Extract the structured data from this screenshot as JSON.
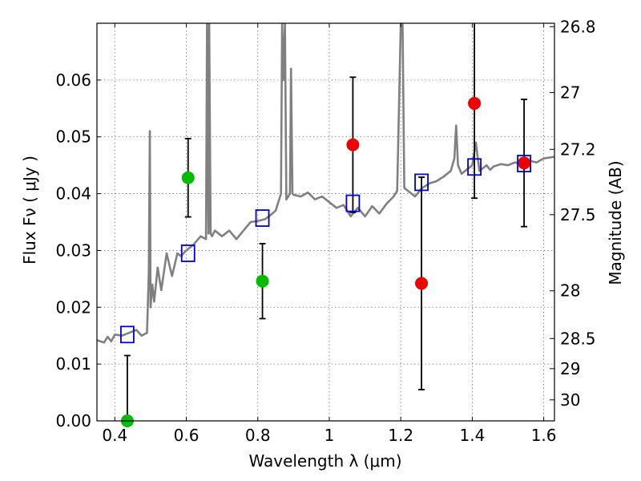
{
  "chart_data": {
    "type": "scatter",
    "xlabel": "Wavelength  λ (μm)",
    "ylabel": "Flux  Fν  ( μJy )",
    "ylabel_right": "Magnitude (AB)",
    "xlim": [
      0.35,
      1.63
    ],
    "ylim": [
      0.0,
      0.07
    ],
    "grid": true,
    "colors": {
      "spectrum": "#808080",
      "green": "#00bb00",
      "red": "#ee0000",
      "model": "#0000cc",
      "errorbar": "#000000"
    },
    "x_ticks": [
      {
        "value": 0.4,
        "label": "0.4"
      },
      {
        "value": 0.6,
        "label": "0.6"
      },
      {
        "value": 0.8,
        "label": "0.8"
      },
      {
        "value": 1.0,
        "label": "1"
      },
      {
        "value": 1.2,
        "label": "1.2"
      },
      {
        "value": 1.4,
        "label": "1.4"
      },
      {
        "value": 1.6,
        "label": "1.6"
      }
    ],
    "y_ticks": [
      {
        "value": 0.0,
        "label": "0.00"
      },
      {
        "value": 0.01,
        "label": "0.01"
      },
      {
        "value": 0.02,
        "label": "0.02"
      },
      {
        "value": 0.03,
        "label": "0.03"
      },
      {
        "value": 0.04,
        "label": "0.04"
      },
      {
        "value": 0.05,
        "label": "0.05"
      },
      {
        "value": 0.06,
        "label": "0.06"
      }
    ],
    "right_ticks": [
      {
        "flux": 0.0694,
        "label": "26.8"
      },
      {
        "flux": 0.0578,
        "label": "27"
      },
      {
        "flux": 0.0478,
        "label": "27.2"
      },
      {
        "flux": 0.0363,
        "label": "27.5"
      },
      {
        "flux": 0.0229,
        "label": "28"
      },
      {
        "flux": 0.0145,
        "label": "28.5"
      },
      {
        "flux": 0.0092,
        "label": "29"
      },
      {
        "flux": 0.0037,
        "label": "30"
      }
    ],
    "series": [
      {
        "name": "model spectrum",
        "kind": "line",
        "x": [
          0.35,
          0.37,
          0.38,
          0.39,
          0.4,
          0.42,
          0.44,
          0.46,
          0.475,
          0.49,
          0.495,
          0.498,
          0.5,
          0.505,
          0.51,
          0.52,
          0.53,
          0.545,
          0.56,
          0.575,
          0.585,
          0.6,
          0.62,
          0.64,
          0.655,
          0.658,
          0.662,
          0.664,
          0.668,
          0.672,
          0.68,
          0.7,
          0.72,
          0.74,
          0.76,
          0.78,
          0.8,
          0.82,
          0.835,
          0.85,
          0.865,
          0.868,
          0.872,
          0.876,
          0.88,
          0.89,
          0.893,
          0.897,
          0.9,
          0.92,
          0.94,
          0.96,
          0.98,
          1.0,
          1.02,
          1.04,
          1.06,
          1.08,
          1.1,
          1.12,
          1.14,
          1.16,
          1.18,
          1.19,
          1.2,
          1.205,
          1.21,
          1.22,
          1.24,
          1.26,
          1.28,
          1.3,
          1.32,
          1.34,
          1.35,
          1.355,
          1.36,
          1.37,
          1.38,
          1.4,
          1.41,
          1.42,
          1.43,
          1.44,
          1.45,
          1.46,
          1.48,
          1.5,
          1.52,
          1.54,
          1.56,
          1.58,
          1.6,
          1.63
        ],
        "values": [
          0.0142,
          0.0138,
          0.0148,
          0.014,
          0.0152,
          0.015,
          0.0155,
          0.016,
          0.015,
          0.0155,
          0.026,
          0.051,
          0.02,
          0.024,
          0.021,
          0.027,
          0.023,
          0.0295,
          0.0255,
          0.0295,
          0.029,
          0.03,
          0.031,
          0.0325,
          0.032,
          0.07,
          0.033,
          0.07,
          0.033,
          0.0325,
          0.0335,
          0.0325,
          0.0335,
          0.032,
          0.0335,
          0.035,
          0.0352,
          0.0355,
          0.0362,
          0.037,
          0.04,
          0.07,
          0.06,
          0.07,
          0.039,
          0.04,
          0.062,
          0.04,
          0.0398,
          0.0395,
          0.0402,
          0.039,
          0.0395,
          0.0385,
          0.0375,
          0.038,
          0.036,
          0.0375,
          0.036,
          0.0378,
          0.0365,
          0.0382,
          0.0395,
          0.0405,
          0.07,
          0.07,
          0.041,
          0.0405,
          0.0395,
          0.041,
          0.0418,
          0.0422,
          0.043,
          0.044,
          0.0462,
          0.052,
          0.045,
          0.0435,
          0.044,
          0.045,
          0.049,
          0.044,
          0.0445,
          0.045,
          0.0442,
          0.0448,
          0.0452,
          0.045,
          0.0455,
          0.045,
          0.0458,
          0.0455,
          0.0462,
          0.0465
        ]
      },
      {
        "name": "green photometry",
        "kind": "points",
        "marker": "circle",
        "x": [
          0.435,
          0.605,
          0.813
        ],
        "values": [
          0.0,
          0.0428,
          0.0246
        ],
        "err_low": [
          0.0,
          0.0069,
          0.0066
        ],
        "err_high": [
          0.0115,
          0.0069,
          0.0066
        ]
      },
      {
        "name": "red photometry",
        "kind": "points",
        "marker": "circle",
        "x": [
          1.066,
          1.258,
          1.406,
          1.545
        ],
        "values": [
          0.0486,
          0.0242,
          0.0559,
          0.0454
        ],
        "err_low": [
          0.0119,
          0.0187,
          0.0167,
          0.0112
        ],
        "err_high": [
          0.0119,
          0.0187,
          0.0167,
          0.0112
        ]
      },
      {
        "name": "model photometry",
        "kind": "points",
        "marker": "square",
        "x": [
          0.435,
          0.605,
          0.813,
          1.066,
          1.258,
          1.406,
          1.545
        ],
        "values": [
          0.0152,
          0.0295,
          0.0357,
          0.0383,
          0.042,
          0.0447,
          0.0453
        ]
      }
    ]
  }
}
